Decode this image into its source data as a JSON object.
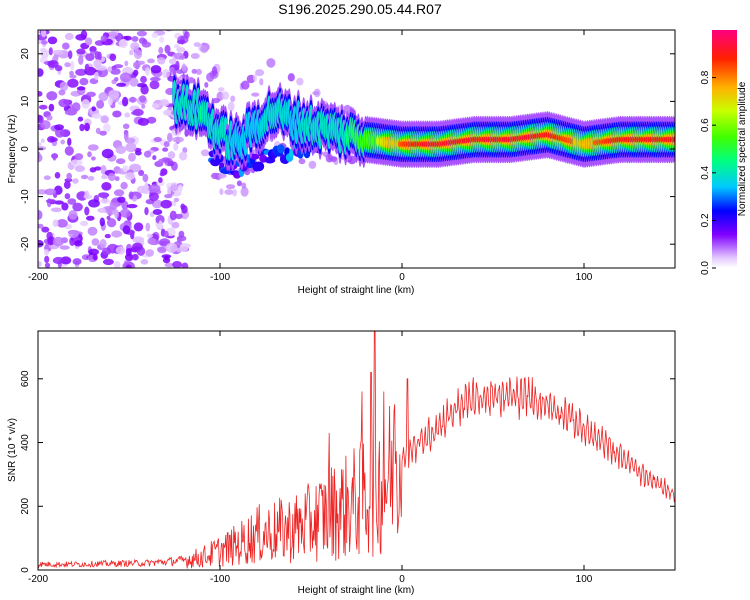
{
  "title": "S196.2025.290.05.44.R07",
  "colorbar": {
    "label": "Normalized spectral amplitude",
    "ticks": [
      0.0,
      0.2,
      0.4,
      0.6,
      0.8
    ],
    "tick_labels": [
      "0.0",
      "0.2",
      "0.4",
      "0.6",
      "0.8"
    ],
    "range": [
      0,
      1
    ]
  },
  "colors": {
    "snr_line": "#ee2222",
    "axis": "#000000"
  },
  "chart_data": [
    {
      "type": "heatmap",
      "title": "S196.2025.290.05.44.R07",
      "xlabel": "Height of straight line (km)",
      "ylabel": "Frequency (Hz)",
      "xlim": [
        -200,
        150
      ],
      "ylim": [
        -25,
        25
      ],
      "xticks": [
        -200,
        -100,
        0,
        100
      ],
      "xtick_labels": [
        "-200",
        "-100",
        "0",
        "100"
      ],
      "yticks": [
        -20,
        -10,
        0,
        10,
        20
      ],
      "ytick_labels": [
        "-20",
        "-10",
        "0",
        "10",
        "20"
      ],
      "ridge": {
        "x": [
          -125,
          -110,
          -100,
          -90,
          -80,
          -70,
          -60,
          -50,
          -40,
          -30,
          -20,
          -10,
          0,
          20,
          40,
          60,
          80,
          90,
          100,
          110,
          120,
          150
        ],
        "freq": [
          10,
          8,
          3,
          1,
          5,
          8,
          6,
          5,
          4,
          3,
          2,
          1.5,
          1,
          1,
          2,
          2,
          3,
          2,
          1,
          1.5,
          2,
          2
        ],
        "amplitude": [
          0.4,
          0.45,
          0.4,
          0.35,
          0.35,
          0.4,
          0.35,
          0.4,
          0.4,
          0.45,
          0.55,
          0.7,
          0.85,
          0.95,
          0.9,
          0.95,
          0.9,
          0.85,
          0.8,
          0.85,
          0.9,
          0.9
        ]
      },
      "lower_branch": {
        "x": [
          -105,
          -95,
          -85,
          -75,
          -65,
          -55,
          -45
        ],
        "freq": [
          -1,
          -5,
          -3,
          -2,
          -1,
          0,
          1
        ]
      },
      "noise_region_x": [
        -200,
        -130
      ]
    },
    {
      "type": "line",
      "xlabel": "Height of straight line (km)",
      "ylabel": "SNR (10 * v/v)",
      "xlim": [
        -200,
        150
      ],
      "ylim": [
        0,
        750
      ],
      "xticks": [
        -200,
        -100,
        0,
        100
      ],
      "xtick_labels": [
        "-200",
        "-100",
        "0",
        "100"
      ],
      "yticks": [
        0,
        200,
        400,
        600
      ],
      "ytick_labels": [
        "0",
        "200",
        "400",
        "600"
      ],
      "series": [
        {
          "name": "SNR",
          "x": [
            -200,
            -180,
            -160,
            -140,
            -120,
            -110,
            -100,
            -90,
            -80,
            -70,
            -60,
            -50,
            -40,
            -30,
            -20,
            -15,
            -10,
            -5,
            0,
            10,
            20,
            30,
            40,
            50,
            60,
            70,
            80,
            90,
            100,
            110,
            120,
            130,
            140,
            150
          ],
          "y": [
            18,
            18,
            20,
            22,
            30,
            40,
            60,
            80,
            110,
            120,
            130,
            150,
            180,
            200,
            230,
            260,
            280,
            300,
            350,
            400,
            450,
            510,
            540,
            540,
            545,
            540,
            520,
            490,
            440,
            400,
            360,
            310,
            270,
            240
          ],
          "spikes": [
            {
              "x": -22,
              "y": 560
            },
            {
              "x": -17,
              "y": 620
            },
            {
              "x": -15,
              "y": 750
            },
            {
              "x": -10,
              "y": 560
            },
            {
              "x": 3,
              "y": 600
            },
            {
              "x": -40,
              "y": 430
            },
            {
              "x": -4,
              "y": 520
            }
          ]
        }
      ]
    }
  ]
}
